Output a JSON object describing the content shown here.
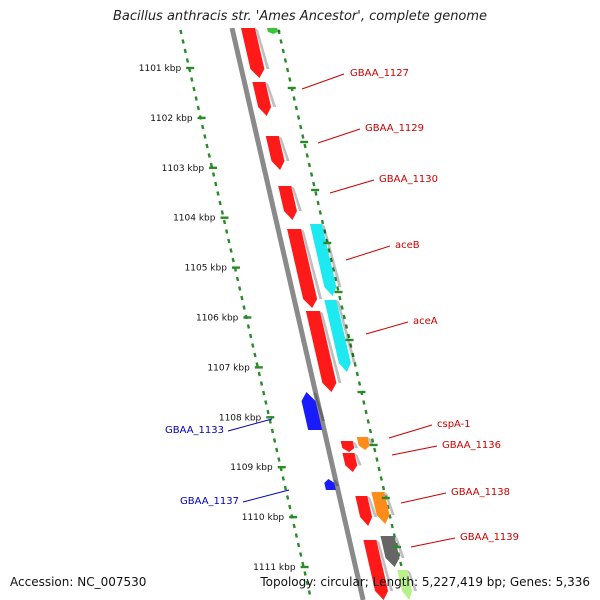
{
  "title": "Bacillus anthracis str. 'Ames Ancestor', complete genome",
  "footer": {
    "accession": "Accession: NC_007530",
    "summary": "Topology: circular; Length: 5,227,419 bp; Genes: 5,336"
  },
  "scale_labels": [
    "1101 kbp",
    "1102 kbp",
    "1103 kbp",
    "1104 kbp",
    "1105 kbp",
    "1106 kbp",
    "1107 kbp",
    "1108 kbp",
    "1109 kbp",
    "1110 kbp",
    "1111 kbp"
  ],
  "colors": {
    "gene_red": "#ff1a1a",
    "cds_cyan": "#1ee8f0",
    "gene_blue": "#1a1aff",
    "orange": "#ff8c1a",
    "gray": "#666666",
    "green": "#3cc43c",
    "label_red": "#cc0000",
    "label_blue": "#0000bb",
    "dotted_green": "#2a8a2a",
    "backbone": "#8a8a8a"
  },
  "gene_labels": [
    {
      "name": "GBAA_1127",
      "color": "red"
    },
    {
      "name": "GBAA_1129",
      "color": "red"
    },
    {
      "name": "GBAA_1130",
      "color": "red"
    },
    {
      "name": "aceB",
      "color": "red"
    },
    {
      "name": "aceA",
      "color": "red"
    },
    {
      "name": "cspA-1",
      "color": "red"
    },
    {
      "name": "GBAA_1136",
      "color": "red"
    },
    {
      "name": "GBAA_1138",
      "color": "red"
    },
    {
      "name": "GBAA_1139",
      "color": "red"
    },
    {
      "name": "GBAA_1133",
      "color": "blue"
    },
    {
      "name": "GBAA_1137",
      "color": "blue"
    }
  ]
}
